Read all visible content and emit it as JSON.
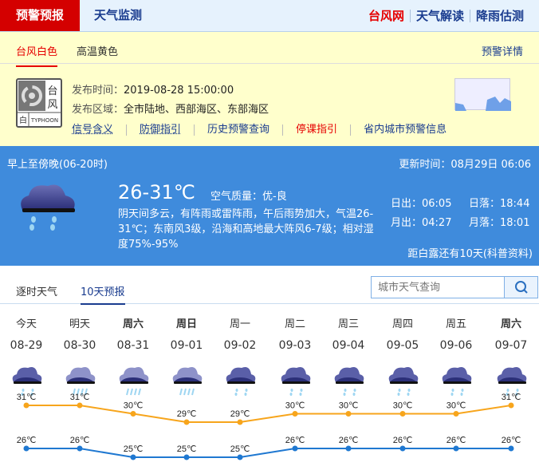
{
  "topnav": {
    "active": "预警预报",
    "monitor": "天气监测",
    "links": [
      "台风网",
      "天气解读",
      "降雨估测"
    ]
  },
  "warning": {
    "tabs": [
      "台风白色",
      "高温黄色"
    ],
    "detail": "预警详情",
    "badge": {
      "chars": "台风",
      "level": "白",
      "en": "TYPHOON"
    },
    "time_label": "发布时间：",
    "time": "2019-08-28 15:00:00",
    "area_label": "发布区域：",
    "area": "全市陆地、西部海区、东部海区",
    "links": [
      "信号含义",
      "防御指引",
      "历史预警查询",
      "停课指引",
      "省内城市预警信息"
    ]
  },
  "now": {
    "period": "早上至傍晚(06-20时)",
    "update": "更新时间：08月29日 06:06",
    "temp": "26-31℃",
    "aq_label": "空气质量：",
    "aq": "优-良",
    "desc": "阴天间多云，有阵雨或雷阵雨，午后雨势加大，气温26-31℃；东南风3级，沿海和高地最大阵风6-7级；相对湿度75%-95%",
    "sunrise": "日出：06:05",
    "sunset": "日落：18:44",
    "moonrise": "月出：04:27",
    "moonset": "月落：18:01",
    "solar_term": "距白露还有10天(科普资料)"
  },
  "forecast": {
    "tabs": [
      "逐时天气",
      "10天预报"
    ],
    "search_placeholder": "城市天气查询",
    "days": [
      {
        "week": "今天",
        "date": "08-29",
        "icon": "rain-icon",
        "bold": false
      },
      {
        "week": "明天",
        "date": "08-30",
        "icon": "heavy-rain-icon",
        "bold": false
      },
      {
        "week": "周六",
        "date": "08-31",
        "icon": "heavy-rain-icon",
        "bold": true
      },
      {
        "week": "周日",
        "date": "09-01",
        "icon": "heavy-rain-icon",
        "bold": true
      },
      {
        "week": "周一",
        "date": "09-02",
        "icon": "rain-icon",
        "bold": false
      },
      {
        "week": "周二",
        "date": "09-03",
        "icon": "rain-icon",
        "bold": false
      },
      {
        "week": "周三",
        "date": "09-04",
        "icon": "rain-icon",
        "bold": false
      },
      {
        "week": "周四",
        "date": "09-05",
        "icon": "rain-icon",
        "bold": false
      },
      {
        "week": "周五",
        "date": "09-06",
        "icon": "rain-icon",
        "bold": false
      },
      {
        "week": "周六",
        "date": "09-07",
        "icon": "rain-icon",
        "bold": true
      }
    ]
  },
  "chart_data": {
    "type": "line",
    "categories": [
      "08-29",
      "08-30",
      "08-31",
      "09-01",
      "09-02",
      "09-03",
      "09-04",
      "09-05",
      "09-06",
      "09-07"
    ],
    "unit": "℃",
    "series": [
      {
        "values": [
          31,
          31,
          30,
          29,
          29,
          30,
          30,
          30,
          30,
          31
        ],
        "color": "#f7a51c"
      },
      {
        "values": [
          26,
          26,
          25,
          25,
          25,
          26,
          26,
          26,
          26,
          26
        ],
        "color": "#1f78d1"
      }
    ]
  }
}
